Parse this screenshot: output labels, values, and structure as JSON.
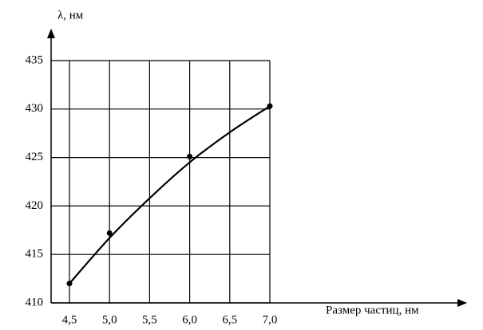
{
  "chart_data": {
    "type": "line",
    "y_label": "λ, нм",
    "x_label": "Размер частиц, нм",
    "series": [
      {
        "x": [
          4.5,
          5.0,
          6.0,
          7.0
        ],
        "values": [
          412,
          417.2,
          425.1,
          430.3
        ],
        "color": "#000000",
        "markers": true,
        "line": false
      },
      {
        "x": [
          4.5,
          5.0,
          5.5,
          6.0,
          6.5,
          7.0
        ],
        "values": [
          412,
          416.7,
          420.8,
          424.5,
          427.6,
          430.3
        ],
        "color": "#000000",
        "markers": false,
        "line": true
      }
    ],
    "xlim": [
      4.5,
      7.0
    ],
    "ylim": [
      410,
      435
    ],
    "xticks": [
      {
        "value": 4.5,
        "label": "4,5"
      },
      {
        "value": 5.0,
        "label": "5,0"
      },
      {
        "value": 5.5,
        "label": "5,5"
      },
      {
        "value": 6.0,
        "label": "6,0"
      },
      {
        "value": 6.5,
        "label": "6,5"
      },
      {
        "value": 7.0,
        "label": "7,0"
      }
    ],
    "yticks": [
      410,
      415,
      420,
      425,
      430,
      435
    ],
    "grid": true
  }
}
